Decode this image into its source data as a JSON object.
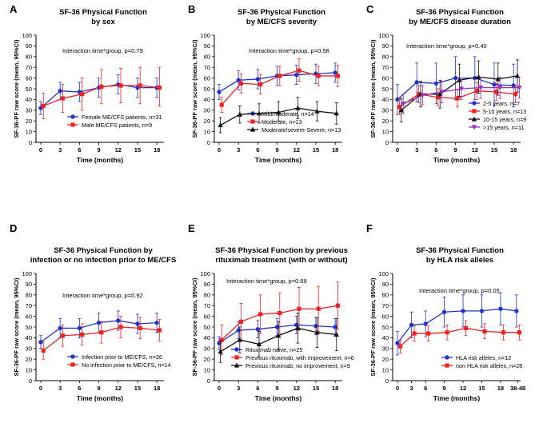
{
  "colors": {
    "blue": "#2233cc",
    "red": "#ee2222",
    "black": "#111111",
    "purple": "#9a2fbf",
    "axis": "#000000"
  },
  "chart_data": [
    {
      "type": "line",
      "panel_letter": "A",
      "title": [
        "SF-36 Physical Function",
        "by sex"
      ],
      "xlabel": "Time (months)",
      "ylabel": "SF-36-PF raw score (mean, 95%CI)",
      "ylim": [
        0,
        100
      ],
      "yticks": [
        0,
        10,
        20,
        30,
        40,
        50,
        60,
        70,
        80,
        90,
        100
      ],
      "categories": [
        "0",
        "3",
        "6",
        "9",
        "12",
        "15",
        "18"
      ],
      "annotation": "Interaction time*group, p=0.79",
      "legend_position": "bottom-right",
      "series": [
        {
          "name": "Female ME/CFS patients, n=31",
          "color": "blue",
          "marker": "circle",
          "x": [
            0,
            3,
            6,
            9,
            12,
            15,
            18
          ],
          "values": [
            32,
            48,
            47,
            51,
            54,
            51,
            51
          ],
          "lower": [
            26,
            40,
            38,
            42,
            45,
            42,
            42
          ],
          "upper": [
            38,
            56,
            56,
            60,
            63,
            60,
            60
          ]
        },
        {
          "name": "Male ME/CFS patients, n=9",
          "color": "red",
          "marker": "square",
          "x": [
            0.4,
            3.4,
            6.4,
            9.4,
            12.4,
            15.4,
            18.4
          ],
          "values": [
            34,
            41,
            45,
            52,
            53,
            53,
            51
          ],
          "lower": [
            22,
            28,
            30,
            36,
            37,
            36,
            34
          ],
          "upper": [
            46,
            54,
            60,
            68,
            69,
            70,
            70
          ]
        }
      ]
    },
    {
      "type": "line",
      "panel_letter": "B",
      "title": [
        "SF-36 Physical Function",
        "by ME/CFS severity"
      ],
      "xlabel": "Time (months)",
      "ylabel": "SF-36-PF raw score (mean, 95%CI)",
      "ylim": [
        0,
        100
      ],
      "yticks": [
        0,
        10,
        20,
        30,
        40,
        50,
        60,
        70,
        80,
        90,
        100
      ],
      "categories": [
        "0",
        "3",
        "6",
        "9",
        "12",
        "15",
        "18"
      ],
      "annotation": "Interaction time*group, p=0.58",
      "legend_position": "bottom-right",
      "series": [
        {
          "name": "Mild/moderate, n=14",
          "color": "blue",
          "marker": "circle",
          "x": [
            0,
            3,
            6,
            9,
            12,
            15,
            18
          ],
          "values": [
            47,
            58,
            59,
            62,
            63,
            64,
            65
          ],
          "lower": [
            40,
            49,
            50,
            53,
            54,
            55,
            56
          ],
          "upper": [
            54,
            67,
            68,
            71,
            72,
            73,
            74
          ]
        },
        {
          "name": "Moderate, n=13",
          "color": "red",
          "marker": "square",
          "x": [
            0.4,
            3.4,
            6.4,
            9.4,
            12.4,
            15.4,
            18.4
          ],
          "values": [
            35,
            55,
            54,
            62,
            67,
            62,
            62
          ],
          "lower": [
            28,
            46,
            45,
            53,
            57,
            53,
            52
          ],
          "upper": [
            42,
            64,
            63,
            71,
            78,
            71,
            72
          ]
        },
        {
          "name": "Moderate/severe-Severe, n=13",
          "color": "black",
          "marker": "triangle",
          "x": [
            0.2,
            3.2,
            6.2,
            9.2,
            12.2,
            15.2,
            18.2
          ],
          "values": [
            16,
            26,
            27,
            28,
            32,
            29,
            27
          ],
          "lower": [
            9,
            18,
            18,
            20,
            22,
            20,
            17
          ],
          "upper": [
            23,
            34,
            36,
            38,
            42,
            38,
            37
          ]
        }
      ]
    },
    {
      "type": "line",
      "panel_letter": "C",
      "title": [
        "SF-36 Physical Function",
        "by ME/CFS disease duration"
      ],
      "xlabel": "Time (months)",
      "ylabel": "SF-36-PF raw score (mean, 95%CI)",
      "ylim": [
        0,
        100
      ],
      "yticks": [
        0,
        10,
        20,
        30,
        40,
        50,
        60,
        70,
        80,
        90,
        100
      ],
      "categories": [
        "0",
        "3",
        "6",
        "9",
        "12",
        "15",
        "18"
      ],
      "annotation": "Interaction time*group, p=0.40",
      "legend_position": "bottom-right",
      "series": [
        {
          "name": "2-5 years, n=7",
          "color": "blue",
          "marker": "circle",
          "x": [
            0,
            3,
            6,
            9,
            12,
            15,
            18
          ],
          "values": [
            40,
            56,
            55,
            60,
            60,
            54,
            53
          ],
          "lower": [
            26,
            38,
            36,
            40,
            40,
            34,
            33
          ],
          "upper": [
            54,
            74,
            74,
            80,
            80,
            74,
            73
          ]
        },
        {
          "name": "5-10 years, n=13",
          "color": "red",
          "marker": "square",
          "x": [
            0.3,
            3.3,
            6.3,
            9.3,
            12.3,
            15.3,
            18.3
          ],
          "values": [
            33,
            45,
            42,
            41,
            48,
            47,
            45
          ],
          "lower": [
            26,
            37,
            34,
            33,
            40,
            39,
            37
          ],
          "upper": [
            40,
            53,
            50,
            49,
            56,
            55,
            53
          ]
        },
        {
          "name": "10-15 years, n=9",
          "color": "black",
          "marker": "triangle",
          "x": [
            0.6,
            3.6,
            6.6,
            9.6,
            12.6,
            15.6,
            18.6
          ],
          "values": [
            30,
            45,
            45,
            58,
            61,
            59,
            62
          ],
          "lower": [
            19,
            33,
            32,
            43,
            46,
            44,
            47
          ],
          "upper": [
            41,
            57,
            58,
            73,
            76,
            74,
            77
          ]
        },
        {
          "name": ">15 years, n=11",
          "color": "purple",
          "marker": "triangle-down",
          "x": [
            0.9,
            3.9,
            6.9,
            9.9,
            12.9,
            15.9,
            18.9
          ],
          "values": [
            36,
            44,
            47,
            50,
            51,
            51,
            51
          ],
          "lower": [
            27,
            35,
            37,
            40,
            41,
            41,
            41
          ],
          "upper": [
            45,
            53,
            57,
            60,
            61,
            61,
            61
          ]
        }
      ]
    },
    {
      "type": "line",
      "panel_letter": "D",
      "title": [
        "SF-36 Physical Function by",
        "infection or no infection prior to ME/CFS"
      ],
      "xlabel": "Time (months)",
      "ylabel": "SF-36-PF raw score (mean, 95%CI)",
      "ylim": [
        0,
        100
      ],
      "yticks": [
        0,
        10,
        20,
        30,
        40,
        50,
        60,
        70,
        80,
        90,
        100
      ],
      "categories": [
        "0",
        "3",
        "6",
        "9",
        "12",
        "15",
        "18"
      ],
      "annotation": "Interaction time*group, p=0.92",
      "legend_position": "bottom-right",
      "series": [
        {
          "name": "Infection prior to ME/CFS, n=26",
          "color": "blue",
          "marker": "circle",
          "x": [
            0,
            3,
            6,
            9,
            12,
            15,
            18
          ],
          "values": [
            36,
            49,
            49,
            54,
            56,
            53,
            54
          ],
          "lower": [
            30,
            40,
            40,
            45,
            47,
            44,
            45
          ],
          "upper": [
            42,
            58,
            58,
            63,
            65,
            62,
            63
          ]
        },
        {
          "name": "No infection prior to ME/CFS, n=14",
          "color": "red",
          "marker": "square",
          "x": [
            0.4,
            3.4,
            6.4,
            9.4,
            12.4,
            15.4,
            18.4
          ],
          "values": [
            28,
            42,
            43,
            45,
            50,
            49,
            47
          ],
          "lower": [
            20,
            32,
            33,
            35,
            40,
            39,
            37
          ],
          "upper": [
            36,
            52,
            53,
            55,
            60,
            59,
            57
          ]
        }
      ]
    },
    {
      "type": "line",
      "panel_letter": "E",
      "title": [
        "SF-36 Physical Function  by previous",
        "rituximab treatment (with or without)"
      ],
      "xlabel": "Time (months)",
      "ylabel": "SF-36-PF raw score (mean, 95%CI)",
      "ylim": [
        0,
        100
      ],
      "yticks": [
        0,
        10,
        20,
        30,
        40,
        50,
        60,
        70,
        80,
        90,
        100
      ],
      "categories": [
        "0",
        "3",
        "6",
        "9",
        "12",
        "15",
        "18"
      ],
      "annotation": "Interaction time*group, p=0.69",
      "legend_position": "bottom-left",
      "series": [
        {
          "name": "Rituximab naive, n=25",
          "color": "blue",
          "marker": "circle",
          "x": [
            0,
            3,
            6,
            9,
            12,
            15,
            18
          ],
          "values": [
            35,
            47,
            48,
            50,
            52,
            51,
            50
          ],
          "lower": [
            29,
            39,
            40,
            42,
            44,
            43,
            42
          ],
          "upper": [
            41,
            55,
            56,
            58,
            60,
            59,
            58
          ]
        },
        {
          "name": "Previous rituximab, with improvement, n=6",
          "color": "red",
          "marker": "square",
          "x": [
            0.4,
            3.4,
            6.4,
            9.4,
            12.4,
            15.4,
            18.4
          ],
          "values": [
            38,
            55,
            62,
            63,
            67,
            67,
            70
          ],
          "lower": [
            24,
            38,
            44,
            44,
            47,
            46,
            48
          ],
          "upper": [
            52,
            72,
            80,
            82,
            87,
            88,
            92
          ]
        },
        {
          "name": "Previous rituximab, no improvement, n=9",
          "color": "black",
          "marker": "triangle",
          "x": [
            0.2,
            3.2,
            6.2,
            9.2,
            12.2,
            15.2,
            18.2
          ],
          "values": [
            27,
            38,
            34,
            42,
            49,
            45,
            43
          ],
          "lower": [
            17,
            26,
            22,
            29,
            35,
            31,
            28
          ],
          "upper": [
            37,
            50,
            46,
            55,
            63,
            59,
            58
          ]
        }
      ]
    },
    {
      "type": "line",
      "panel_letter": "F",
      "title": [
        "SF-36 Physical Function",
        "by HLA risk alleles"
      ],
      "xlabel": "Time (months)",
      "ylabel": "SF-36-PF raw score (mean, 95%CI)",
      "ylim": [
        0,
        100
      ],
      "yticks": [
        0,
        10,
        20,
        30,
        40,
        50,
        60,
        70,
        80,
        90,
        100
      ],
      "categories": [
        "0",
        "3",
        "6",
        "9",
        "12",
        "15",
        "18",
        "38-48"
      ],
      "annotation": "Interaction time*group, p=0.05",
      "legend_position": "bottom-right",
      "series": [
        {
          "name": "HLA risk alleles, n=12",
          "color": "blue",
          "marker": "circle",
          "x": [
            0,
            1.5,
            3,
            5,
            7,
            9,
            11,
            12.7
          ],
          "values": [
            35,
            52,
            53,
            64,
            65,
            65,
            67,
            65
          ],
          "lower": [
            24,
            40,
            41,
            50,
            50,
            50,
            52,
            50
          ],
          "upper": [
            46,
            64,
            65,
            78,
            80,
            80,
            82,
            80
          ]
        },
        {
          "name": "non HLA risk alleles, n=28",
          "color": "red",
          "marker": "square",
          "x": [
            0.3,
            1.8,
            3.3,
            5.3,
            7.3,
            9.3,
            11.3,
            13
          ],
          "values": [
            32,
            44,
            44,
            45,
            49,
            46,
            45,
            45
          ],
          "lower": [
            26,
            37,
            37,
            38,
            42,
            39,
            38,
            38
          ],
          "upper": [
            38,
            51,
            51,
            52,
            56,
            53,
            52,
            52
          ]
        }
      ]
    }
  ]
}
